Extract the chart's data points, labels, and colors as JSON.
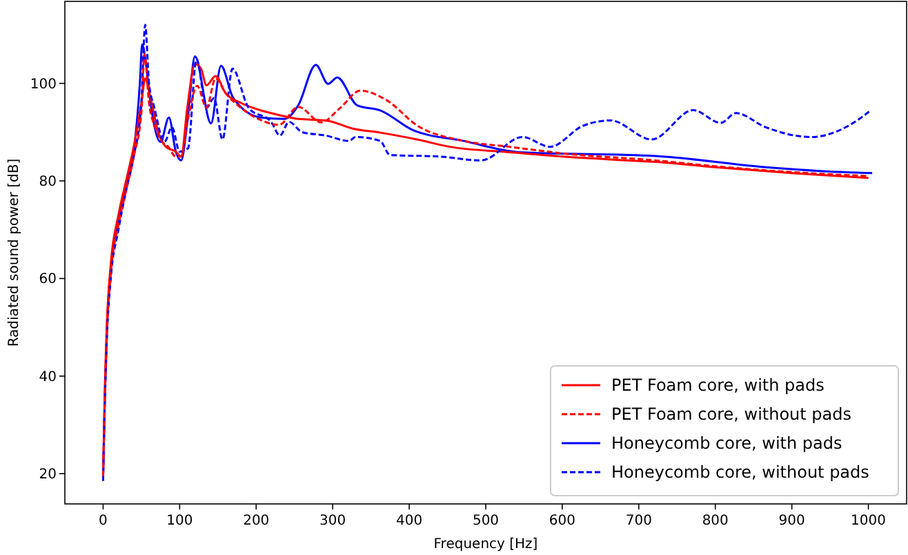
{
  "chart_data": {
    "type": "line",
    "xlabel": "Frequency [Hz]",
    "ylabel": "Radiated sound power [dB]",
    "xlim": [
      -50,
      1050
    ],
    "ylim": [
      13.8,
      116.8
    ],
    "xticks": [
      0,
      100,
      200,
      300,
      400,
      500,
      600,
      700,
      800,
      900,
      1000
    ],
    "yticks": [
      20,
      40,
      60,
      80,
      100
    ],
    "grid": false,
    "legend": "bottom right",
    "marker": "none",
    "series": [
      {
        "name": "PET Foam core, with pads",
        "color": "#ff0000",
        "line_style": "solid",
        "x": [
          0,
          2,
          5,
          10,
          20,
          30,
          40,
          50,
          55,
          62,
          72,
          82,
          95,
          102,
          110,
          120,
          128,
          135,
          147,
          160,
          180,
          201,
          230,
          255,
          291,
          327,
          362,
          410,
          453,
          530,
          600,
          687,
          722,
          800,
          900,
          1000
        ],
        "values": [
          20,
          36,
          51,
          63,
          73,
          80,
          87,
          96,
          101,
          97,
          90,
          87,
          86,
          85,
          95,
          104,
          103,
          99.6,
          101.5,
          98,
          96,
          94.7,
          93.5,
          92.7,
          92.4,
          90.7,
          89.9,
          88.5,
          87,
          85.9,
          85,
          84.2,
          83.9,
          82.8,
          81.6,
          80.6
        ]
      },
      {
        "name": "PET Foam core, without pads",
        "color": "#ff0000",
        "line_style": "dashed",
        "x": [
          0,
          2,
          5,
          10,
          20,
          30,
          40,
          50,
          54,
          60,
          68,
          75,
          85,
          95,
          102,
          110,
          123,
          135,
          147,
          160,
          180,
          207,
          230,
          255,
          285,
          310,
          336,
          369,
          411,
          471,
          531,
          603,
          722,
          800,
          900,
          1000
        ],
        "values": [
          19.5,
          34,
          49,
          61,
          71,
          78,
          85,
          94,
          106,
          96,
          91,
          88.5,
          87,
          85,
          85,
          92,
          99.5,
          95,
          101,
          98,
          95,
          92.4,
          91.5,
          95.2,
          92,
          95,
          98.5,
          96.7,
          91.3,
          88.2,
          87,
          85.6,
          84.2,
          83,
          81.8,
          81
        ]
      },
      {
        "name": "Honeycomb core, with pads",
        "color": "#0000ff",
        "line_style": "solid",
        "x": [
          0,
          2,
          5,
          10,
          20,
          30,
          40,
          48,
          51,
          56,
          62,
          75,
          86,
          95,
          102,
          110,
          120,
          141,
          154,
          170,
          206,
          237,
          255,
          278,
          294,
          306,
          332,
          363,
          405,
          471,
          543,
          722,
          866,
          940,
          1005
        ],
        "values": [
          19,
          34,
          50,
          62,
          72,
          79,
          86,
          100,
          108,
          104,
          96,
          88,
          93,
          86,
          84.2,
          92,
          105.5,
          91.8,
          103.6,
          97,
          93,
          92.7,
          95.5,
          103.8,
          99.9,
          101.2,
          95.5,
          94.4,
          90.4,
          88.2,
          85.9,
          85.1,
          82.8,
          82,
          81.6
        ]
      },
      {
        "name": "Honeycomb core, without pads",
        "color": "#0000ff",
        "line_style": "dashed",
        "x": [
          0,
          2,
          5,
          10,
          20,
          30,
          40,
          50,
          55,
          60,
          67,
          80,
          90,
          100,
          111,
          122,
          135,
          145,
          156,
          169,
          190,
          220,
          231,
          243,
          260,
          291,
          321,
          330,
          362,
          375,
          440,
          494,
          548,
          584,
          627,
          663,
          717,
          771,
          807,
          827,
          866,
          925,
          974,
          1001
        ],
        "values": [
          18.5,
          33,
          48,
          60,
          70,
          78,
          85,
          96,
          112,
          100,
          95,
          88,
          91,
          86,
          86.7,
          105,
          95,
          97,
          88.5,
          103,
          95,
          92,
          89.3,
          92.1,
          90,
          89.3,
          88.2,
          89,
          88.2,
          85.3,
          85,
          84.2,
          89,
          87,
          91.3,
          92.4,
          88.5,
          94.5,
          91.9,
          93.9,
          91,
          89,
          91.3,
          94.2
        ]
      }
    ]
  }
}
